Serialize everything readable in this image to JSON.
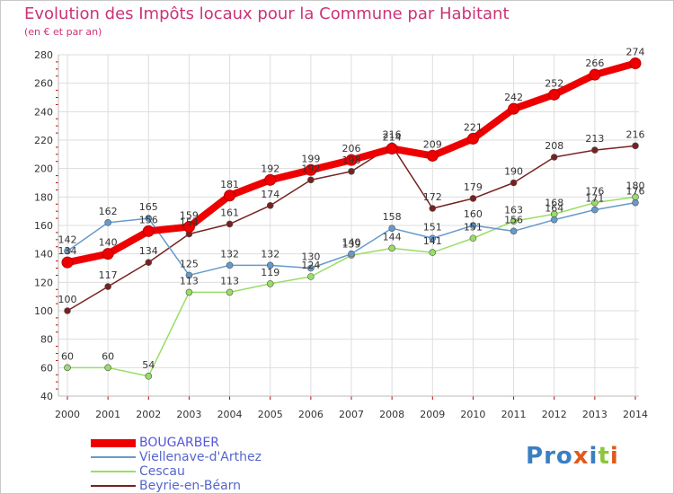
{
  "header": {
    "title": "Evolution des Impôts locaux pour la Commune par Habitant",
    "subtitle": "(en € et par an)"
  },
  "logo": {
    "text": "Proxiti",
    "letters": [
      "P",
      "r",
      "o",
      "x",
      "i",
      "t",
      "i"
    ],
    "colors": [
      "#3a7fc1",
      "#3a7fc1",
      "#3a7fc1",
      "#e05a1c",
      "#3a7fc1",
      "#8cc63f",
      "#e05a1c"
    ]
  },
  "colors": {
    "title": "#cc3377",
    "grid": "#dddddd",
    "tick_red": "#cc0000",
    "axis_text": "#333333"
  },
  "chart_data": {
    "type": "line",
    "title": "Evolution des Impôts locaux pour la Commune par Habitant",
    "subtitle": "(en € et par an)",
    "xlabel": "",
    "ylabel": "",
    "categories": [
      "2000",
      "2001",
      "2002",
      "2003",
      "2004",
      "2005",
      "2006",
      "2007",
      "2008",
      "2009",
      "2010",
      "2011",
      "2012",
      "2013",
      "2014"
    ],
    "ylim": [
      40,
      280
    ],
    "yticks": [
      40,
      60,
      80,
      100,
      120,
      140,
      160,
      180,
      200,
      220,
      240,
      260,
      280
    ],
    "grid": true,
    "series": [
      {
        "name": "BOUGARBER",
        "color": "#ee0000",
        "values": [
          134,
          140,
          156,
          159,
          181,
          192,
          199,
          206,
          214,
          209,
          221,
          242,
          252,
          266,
          274
        ]
      },
      {
        "name": "Viellenave-d'Arthez",
        "color": "#6699cc",
        "values": [
          142,
          162,
          165,
          125,
          132,
          132,
          130,
          140,
          158,
          151,
          160,
          156,
          164,
          171,
          176
        ]
      },
      {
        "name": "Cescau",
        "color": "#99dd66",
        "values": [
          60,
          60,
          54,
          113,
          113,
          119,
          124,
          139,
          144,
          141,
          151,
          163,
          168,
          176,
          180
        ]
      },
      {
        "name": "Beyrie-en-Béarn",
        "color": "#772222",
        "values": [
          100,
          117,
          134,
          154,
          161,
          174,
          192,
          198,
          216,
          172,
          179,
          190,
          208,
          213,
          216
        ]
      }
    ]
  }
}
